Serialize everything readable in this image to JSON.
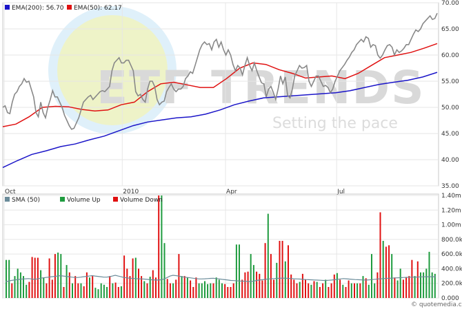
{
  "chart_data": [
    {
      "type": "line",
      "legend": [
        {
          "label_prefix": "EMA(200)",
          "value": "56.70",
          "color": "#1a14c8"
        },
        {
          "label_prefix": "EMA(50)",
          "value": "62.17",
          "color": "#e01010"
        }
      ],
      "ylim": [
        35,
        70
      ],
      "y_ticks": [
        "70.00",
        "65.00",
        "60.00",
        "55.00",
        "50.00",
        "45.00",
        "40.00",
        "35.00"
      ],
      "x_ticks": [
        "Oct",
        "2010",
        "Apr",
        "Jul"
      ],
      "series": [
        {
          "key": "price",
          "color": "#888888",
          "values": [
            50,
            50.3,
            49,
            48.8,
            51,
            52.5,
            53,
            54,
            54.5,
            55.5,
            54.8,
            55,
            53.5,
            52,
            49,
            48.2,
            51,
            49,
            48,
            50,
            51.5,
            53.2,
            52,
            52,
            51,
            50,
            48.5,
            47.5,
            46.5,
            45.8,
            46,
            47,
            48,
            49.5,
            51,
            51.5,
            52,
            52.3,
            51.5,
            52,
            52.5,
            53,
            53.2,
            53,
            53.5,
            54,
            57,
            58.5,
            59,
            59.5,
            58.5,
            58.5,
            59,
            59,
            58,
            57,
            53,
            52.2,
            52.5,
            51.5,
            51,
            53.5,
            55,
            55,
            54,
            51.5,
            50.5,
            51,
            51.2,
            53,
            53.8,
            54.5,
            53.5,
            53,
            53.5,
            53.5,
            54,
            55.5,
            56,
            56.8,
            56.5,
            58,
            59.5,
            61,
            62,
            62.5,
            62,
            62.2,
            61,
            62.5,
            63,
            61.5,
            62.5,
            61,
            60,
            61,
            60,
            58.2,
            57,
            58,
            57.5,
            56.2,
            58,
            59.5,
            58,
            57,
            58.5,
            57,
            55.8,
            54.7,
            54.5,
            52,
            53.5,
            54,
            52.8,
            51.5,
            53.5,
            56,
            54.5,
            55.8,
            52.3,
            51.8,
            53.5,
            56,
            57,
            58,
            57.5,
            57.6,
            58,
            55,
            54,
            55,
            56,
            56,
            55,
            54,
            54.2,
            53.8,
            52.8,
            53.5,
            55,
            56,
            57,
            57.6,
            58.2,
            59,
            59.6,
            60.5,
            61,
            62,
            62.5,
            63,
            62.5,
            63.5,
            63.2,
            61.5,
            62,
            61.8,
            60,
            59.4,
            60,
            61,
            61.8,
            62,
            61.5,
            60,
            61,
            60.5,
            60.8,
            61.3,
            62,
            62,
            63,
            64,
            64.8,
            64.5,
            65,
            66,
            66.5,
            67,
            67.5,
            66.8,
            67,
            68
          ]
        },
        {
          "key": "ema50",
          "color": "#e01010",
          "values": [
            46.3,
            46.8,
            48.2,
            50,
            50.2,
            50.1,
            49.6,
            49.3,
            49.5,
            50.5,
            51,
            53,
            54.5,
            54.8,
            54.3,
            53.8,
            53.8,
            55.5,
            57.5,
            58.5,
            58.2,
            57.2,
            56.5,
            55.6,
            55.8,
            56,
            55.5,
            56.5,
            58,
            59.5,
            60,
            60.5,
            61.3,
            62.2
          ]
        },
        {
          "key": "ema200",
          "color": "#1a14c8",
          "values": [
            38.5,
            39.8,
            41,
            41.7,
            42.5,
            43,
            43.8,
            44.5,
            45.5,
            46.5,
            47.2,
            47.6,
            48,
            48.2,
            48.7,
            49.5,
            50.5,
            51.2,
            51.8,
            52,
            52.2,
            52.4,
            52.6,
            52.8,
            53.2,
            53.8,
            54.4,
            54.8,
            55.2,
            55.8,
            56.7
          ]
        }
      ]
    },
    {
      "type": "bar",
      "legend": [
        {
          "label": "SMA (50)",
          "color": "#6b8c9a"
        },
        {
          "label": "Volume Up",
          "color": "#1e9b3e"
        },
        {
          "label": "Volume Down",
          "color": "#e01010"
        }
      ],
      "ylim": [
        0,
        1400000
      ],
      "y_ticks": [
        "1.40m",
        "1.20m",
        "1.00m",
        "800.0k",
        "600.0k",
        "400.0k",
        "200.0k",
        "0.000"
      ],
      "volume_k": [
        520,
        520,
        200,
        300,
        400,
        350,
        300,
        180,
        220,
        560,
        550,
        550,
        380,
        280,
        200,
        540,
        250,
        600,
        620,
        600,
        150,
        450,
        350,
        200,
        300,
        200,
        200,
        160,
        350,
        280,
        300,
        140,
        120,
        200,
        180,
        150,
        300,
        200,
        210,
        150,
        160,
        580,
        400,
        300,
        540,
        550,
        400,
        300,
        230,
        200,
        290,
        380,
        280,
        1400,
        1400,
        750,
        260,
        200,
        200,
        250,
        600,
        300,
        300,
        280,
        240,
        150,
        280,
        200,
        200,
        230,
        190,
        200,
        200,
        280,
        250,
        200,
        190,
        150,
        150,
        200,
        730,
        730,
        250,
        350,
        360,
        600,
        450,
        360,
        330,
        240,
        750,
        1150,
        600,
        250,
        480,
        780,
        780,
        500,
        720,
        320,
        250,
        200,
        220,
        330,
        250,
        200,
        180,
        230,
        220,
        150,
        200,
        250,
        150,
        200,
        320,
        340,
        250,
        180,
        150,
        240,
        200,
        200,
        200,
        200,
        300,
        270,
        180,
        600,
        200,
        350,
        1170,
        780,
        700,
        720,
        600,
        280,
        240,
        400,
        250,
        280,
        300,
        520,
        300,
        500,
        350,
        350,
        400,
        630,
        350,
        330
      ],
      "up_indices": [
        0,
        1,
        3,
        4,
        5,
        6,
        7,
        12,
        13,
        18,
        19,
        21,
        23,
        26,
        29,
        31,
        32,
        33,
        34,
        35,
        37,
        40,
        45,
        48,
        50,
        54,
        55,
        58,
        61,
        63,
        67,
        68,
        69,
        70,
        71,
        73,
        74,
        75,
        80,
        81,
        85,
        86,
        91,
        94,
        97,
        102,
        106,
        108,
        111,
        115,
        117,
        120,
        122,
        124,
        126,
        127,
        128,
        131,
        134,
        136,
        137,
        142,
        144,
        145,
        146,
        147,
        148,
        149
      ],
      "sma50_k": [
        220,
        230,
        240,
        245,
        250,
        255,
        260,
        262,
        265,
        260,
        255,
        260,
        270,
        275,
        280,
        285,
        290,
        295,
        300,
        305,
        300,
        295,
        290,
        285,
        280,
        280,
        285,
        290,
        295,
        300,
        305,
        300,
        295,
        290,
        285,
        285,
        290,
        300,
        310,
        300,
        290,
        280,
        275,
        270,
        268,
        265,
        262,
        260,
        258,
        255,
        250,
        248,
        245,
        245,
        250,
        260,
        280,
        300,
        310,
        305,
        300,
        290,
        285,
        280,
        275,
        270,
        265,
        260,
        260,
        262,
        265,
        268,
        270,
        265,
        260,
        255,
        250,
        245,
        240,
        238,
        235,
        232,
        230,
        228,
        225,
        225,
        230,
        240,
        245,
        250,
        255,
        260,
        262,
        265,
        268,
        270,
        272,
        270,
        268,
        265,
        262,
        260,
        258,
        255,
        252,
        250,
        248,
        246,
        244,
        242,
        240,
        240,
        242,
        245,
        250,
        255,
        260,
        265,
        262,
        258,
        255,
        252,
        250,
        248,
        246,
        245,
        248,
        252,
        256,
        260,
        262,
        265,
        268,
        270,
        272,
        274,
        276,
        278,
        280,
        282,
        284,
        285,
        286,
        287,
        288,
        289,
        290,
        290,
        290,
        290
      ]
    }
  ],
  "credit": "© quotemedia.com",
  "watermark": {
    "brand": "ETF TRENDS",
    "tagline": "Setting the pace"
  }
}
